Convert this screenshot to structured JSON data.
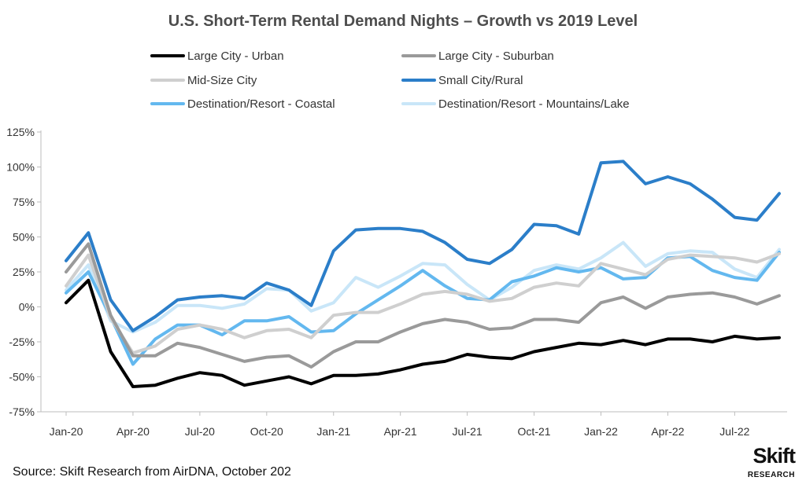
{
  "chart_data": {
    "type": "line",
    "title": "U.S. Short-Term Rental Demand Nights – Growth vs 2019 Level",
    "xlabel": "",
    "ylabel": "",
    "x": [
      "2020-01",
      "2020-02",
      "2020-03",
      "2020-04",
      "2020-05",
      "2020-06",
      "2020-07",
      "2020-08",
      "2020-09",
      "2020-10",
      "2020-11",
      "2020-12",
      "2021-01",
      "2021-02",
      "2021-03",
      "2021-04",
      "2021-05",
      "2021-06",
      "2021-07",
      "2021-08",
      "2021-09",
      "2021-10",
      "2021-11",
      "2021-12",
      "2022-01",
      "2022-02",
      "2022-03",
      "2022-04",
      "2022-05",
      "2022-06",
      "2022-07",
      "2022-08",
      "2022-09"
    ],
    "x_tick_labels": [
      "Jan-20",
      "Apr-20",
      "Jul-20",
      "Oct-20",
      "Jan-21",
      "Apr-21",
      "Jul-21",
      "Oct-21",
      "Jan-22",
      "Apr-22",
      "Jul-22"
    ],
    "x_tick_index": [
      0,
      3,
      6,
      9,
      12,
      15,
      18,
      21,
      24,
      27,
      30
    ],
    "y_ticks": [
      -75,
      -50,
      -25,
      0,
      25,
      50,
      75,
      100,
      125
    ],
    "y_tick_labels": [
      "-75%",
      "-50%",
      "-25%",
      "0%",
      "25%",
      "50%",
      "75%",
      "100%",
      "125%"
    ],
    "ylim": [
      -75,
      125
    ],
    "grid": false,
    "legend_position": "top",
    "series": [
      {
        "name": "Large City - Urban",
        "color": "#000000",
        "values": [
          3,
          19,
          -32,
          -57,
          -56,
          -51,
          -47,
          -49,
          -56,
          -53,
          -50,
          -55,
          -49,
          -49,
          -48,
          -45,
          -41,
          -39,
          -34,
          -36,
          -37,
          -32,
          -29,
          -26,
          -27,
          -24,
          -27,
          -23,
          -23,
          -25,
          -21,
          -23,
          -22
        ]
      },
      {
        "name": "Large City - Suburban",
        "color": "#9a9a9a",
        "values": [
          25,
          45,
          -6,
          -35,
          -35,
          -26,
          -29,
          -34,
          -39,
          -36,
          -35,
          -43,
          -32,
          -25,
          -25,
          -18,
          -12,
          -9,
          -11,
          -16,
          -15,
          -9,
          -9,
          -11,
          3,
          7,
          -1,
          7,
          9,
          10,
          7,
          2,
          8
        ]
      },
      {
        "name": "Mid-Size City",
        "color": "#cfcfcf",
        "values": [
          15,
          37,
          -8,
          -33,
          -28,
          -16,
          -13,
          -16,
          -22,
          -17,
          -16,
          -22,
          -6,
          -4,
          -4,
          2,
          9,
          11,
          9,
          4,
          6,
          14,
          17,
          15,
          31,
          27,
          23,
          34,
          37,
          36,
          35,
          32,
          38
        ]
      },
      {
        "name": "Small City/Rural",
        "color": "#2b7ec9",
        "values": [
          33,
          53,
          5,
          -17,
          -7,
          5,
          7,
          8,
          6,
          17,
          12,
          1,
          40,
          55,
          56,
          56,
          54,
          46,
          34,
          31,
          41,
          59,
          58,
          52,
          103,
          104,
          88,
          93,
          88,
          77,
          64,
          62,
          81
        ]
      },
      {
        "name": "Destination/Resort - Coastal",
        "color": "#63b8ef",
        "values": [
          10,
          25,
          -7,
          -41,
          -23,
          -13,
          -13,
          -20,
          -10,
          -10,
          -7,
          -18,
          -17,
          -5,
          5,
          15,
          26,
          15,
          6,
          5,
          18,
          22,
          28,
          25,
          28,
          20,
          21,
          35,
          36,
          26,
          21,
          19,
          39
        ]
      },
      {
        "name": "Destination/Resort - Mountains/Lake",
        "color": "#c9e6f8",
        "values": [
          12,
          30,
          -10,
          -18,
          -11,
          1,
          1,
          -1,
          2,
          13,
          12,
          -3,
          3,
          21,
          14,
          22,
          31,
          30,
          16,
          5,
          14,
          26,
          30,
          27,
          35,
          46,
          29,
          38,
          40,
          39,
          27,
          21,
          41
        ]
      }
    ]
  },
  "footer": {
    "source": "Source: Skift Research from AirDNA, October 202",
    "logo_main": "Skift",
    "logo_sub": "RESEARCH"
  }
}
